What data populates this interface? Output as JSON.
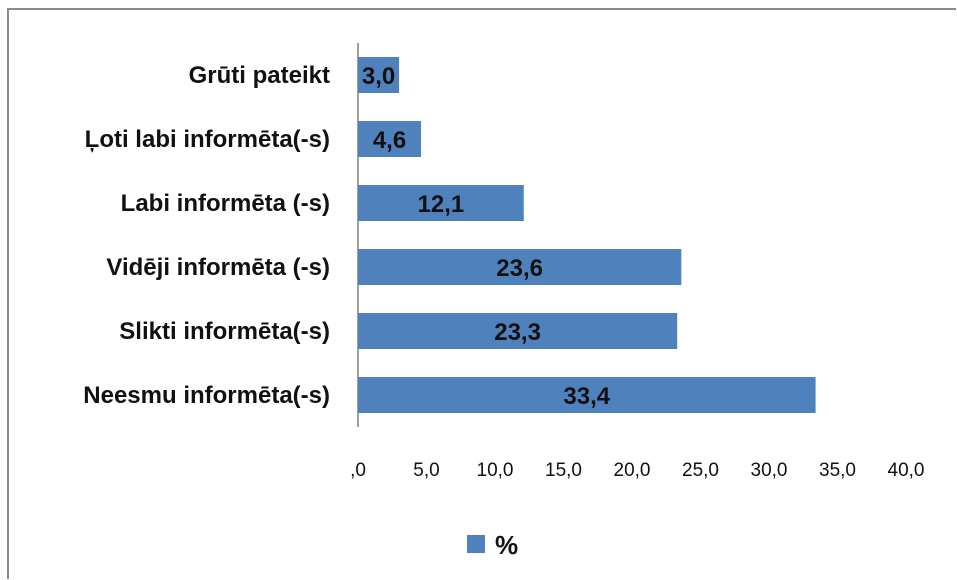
{
  "chart_data": {
    "type": "bar",
    "orientation": "horizontal",
    "categories": [
      "Grūti pateikt",
      "Ļoti labi informēta(-s)",
      "Labi informēta (-s)",
      "Vidēji informēta (-s)",
      "Slikti informēta(-s)",
      "Neesmu informēta(-s)"
    ],
    "series": [
      {
        "name": "%",
        "values": [
          3.0,
          4.6,
          12.1,
          23.6,
          23.3,
          33.4
        ],
        "value_labels": [
          "3,0",
          "4,6",
          "12,1",
          "23,6",
          "23,3",
          "33,4"
        ],
        "color": "#4f81bd"
      }
    ],
    "xlim": [
      0,
      40
    ],
    "x_ticks": [
      0,
      5,
      10,
      15,
      20,
      25,
      30,
      35,
      40
    ],
    "x_tick_labels": [
      ",0",
      "5,0",
      "10,0",
      "15,0",
      "20,0",
      "25,0",
      "30,0",
      "35,0",
      "40,0"
    ],
    "title": "",
    "xlabel": "",
    "ylabel": "",
    "grid": false,
    "legend": {
      "position": "bottom",
      "entries": [
        "%"
      ]
    }
  }
}
